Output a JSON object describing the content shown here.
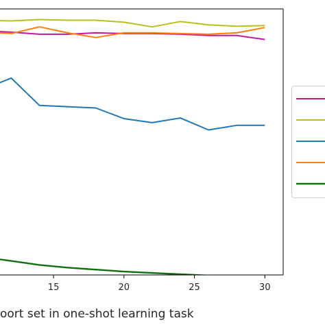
{
  "chart_data": {
    "type": "line",
    "xlabel": "oort set in one-shot learning task",
    "xlim": [
      11.2,
      31.3
    ],
    "ylim": [
      0,
      1
    ],
    "grid": false,
    "legend": "right",
    "x_ticks": [
      15,
      20,
      25,
      30
    ],
    "series": [
      {
        "color": "#c01a9e",
        "x": [
          10,
          12,
          14,
          16,
          18,
          20,
          22,
          24,
          26,
          28,
          30
        ],
        "y": [
          0.9175,
          0.9125,
          0.905,
          0.905,
          0.91,
          0.9075,
          0.9075,
          0.905,
          0.9,
          0.9,
          0.885
        ]
      },
      {
        "color": "#bcbd22",
        "x": [
          10,
          12,
          14,
          16,
          18,
          20,
          22,
          24,
          26,
          28,
          30
        ],
        "y": [
          0.9575,
          0.955,
          0.96,
          0.9575,
          0.9575,
          0.95,
          0.9325,
          0.9525,
          0.94,
          0.935,
          0.9375
        ]
      },
      {
        "color": "#1f77b4",
        "x": [
          10,
          12,
          14,
          16,
          18,
          20,
          22,
          24,
          26,
          28,
          30
        ],
        "y": [
          0.6975,
          0.74,
          0.6375,
          0.6325,
          0.6275,
          0.5875,
          0.5725,
          0.59,
          0.545,
          0.5625,
          0.5625
        ]
      },
      {
        "color": "#ff7f0e",
        "x": [
          10,
          12,
          14,
          16,
          18,
          20,
          22,
          24,
          26,
          28,
          30
        ],
        "y": [
          0.9125,
          0.9075,
          0.9325,
          0.91,
          0.8925,
          0.91,
          0.91,
          0.9075,
          0.905,
          0.91,
          0.93
        ]
      },
      {
        "color": "#107010",
        "x": [
          10,
          12,
          14,
          16,
          18,
          20,
          22,
          24,
          26,
          28,
          30
        ],
        "y": [
          0.0675,
          0.0525,
          0.0375,
          0.0275,
          0.02,
          0.0125,
          0.0075,
          0.0025,
          -0.0025,
          -0.005,
          -0.0075
        ]
      }
    ]
  }
}
